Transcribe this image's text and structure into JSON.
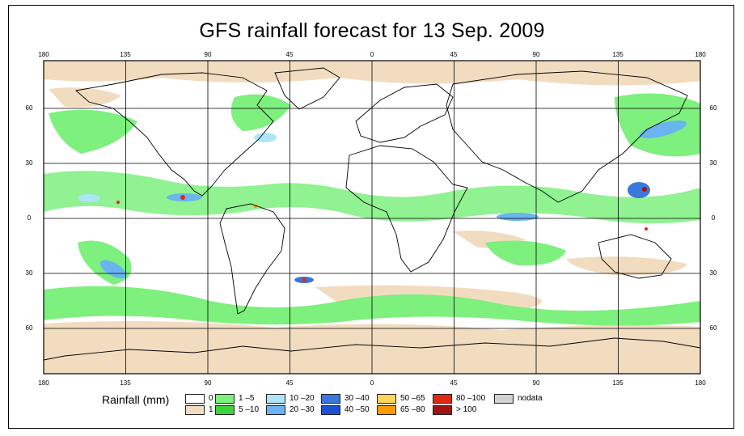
{
  "title": "GFS rainfall forecast for 13 Sep. 2009",
  "axes": {
    "longitude_ticks": [
      "180",
      "135",
      "90",
      "45",
      "0",
      "45",
      "90",
      "135",
      "180"
    ],
    "latitude_ticks": [
      "60",
      "30",
      "0",
      "30",
      "60"
    ]
  },
  "legend": {
    "title": "Rainfall (mm)",
    "items": [
      {
        "label": "0",
        "color": "#ffffff"
      },
      {
        "label": "1",
        "color": "#f2dcc0"
      },
      {
        "label": "1 –5",
        "color": "#7df07d"
      },
      {
        "label": "5 –10",
        "color": "#3cd23c"
      },
      {
        "label": "10 –20",
        "color": "#aee4f8"
      },
      {
        "label": "20 –30",
        "color": "#6ab4f0"
      },
      {
        "label": "30 –40",
        "color": "#3c78dc"
      },
      {
        "label": "40 –50",
        "color": "#1e50d2"
      },
      {
        "label": "50 –65",
        "color": "#ffd55a"
      },
      {
        "label": "65 –80",
        "color": "#ff9a00"
      },
      {
        "label": "80 –100",
        "color": "#e02814"
      },
      {
        "label": "> 100",
        "color": "#a01414"
      },
      {
        "label": "nodata",
        "color": "#d2d2d2"
      }
    ]
  }
}
